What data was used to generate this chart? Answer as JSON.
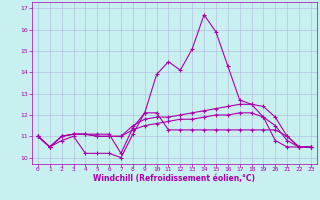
{
  "xlabel": "Windchill (Refroidissement éolien,°C)",
  "background_color": "#c8f0f0",
  "grid_color": "#b0b8d8",
  "line_color": "#aa00aa",
  "xlim": [
    -0.5,
    23.5
  ],
  "ylim": [
    9.7,
    17.3
  ],
  "xticks": [
    0,
    1,
    2,
    3,
    4,
    5,
    6,
    7,
    8,
    9,
    10,
    11,
    12,
    13,
    14,
    15,
    16,
    17,
    18,
    19,
    20,
    21,
    22,
    23
  ],
  "yticks": [
    10,
    11,
    12,
    13,
    14,
    15,
    16,
    17
  ],
  "series": [
    [
      11.0,
      10.5,
      10.8,
      11.0,
      10.2,
      10.2,
      10.2,
      10.0,
      11.1,
      12.1,
      12.1,
      11.3,
      11.3,
      11.3,
      11.3,
      11.3,
      11.3,
      11.3,
      11.3,
      11.3,
      11.3,
      11.0,
      10.5,
      10.5
    ],
    [
      11.0,
      10.5,
      11.0,
      11.1,
      11.1,
      11.1,
      11.1,
      10.2,
      11.4,
      12.1,
      13.9,
      14.5,
      14.1,
      15.1,
      16.7,
      15.9,
      14.3,
      12.7,
      12.5,
      11.9,
      10.8,
      10.5,
      10.5,
      10.5
    ],
    [
      11.0,
      10.5,
      11.0,
      11.1,
      11.1,
      11.0,
      11.0,
      11.0,
      11.5,
      11.8,
      11.9,
      11.9,
      12.0,
      12.1,
      12.2,
      12.3,
      12.4,
      12.5,
      12.5,
      12.4,
      11.9,
      11.0,
      10.5,
      10.5
    ],
    [
      11.0,
      10.5,
      11.0,
      11.1,
      11.1,
      11.0,
      11.0,
      11.0,
      11.3,
      11.5,
      11.6,
      11.7,
      11.8,
      11.8,
      11.9,
      12.0,
      12.0,
      12.1,
      12.1,
      11.9,
      11.5,
      10.8,
      10.5,
      10.5
    ]
  ]
}
